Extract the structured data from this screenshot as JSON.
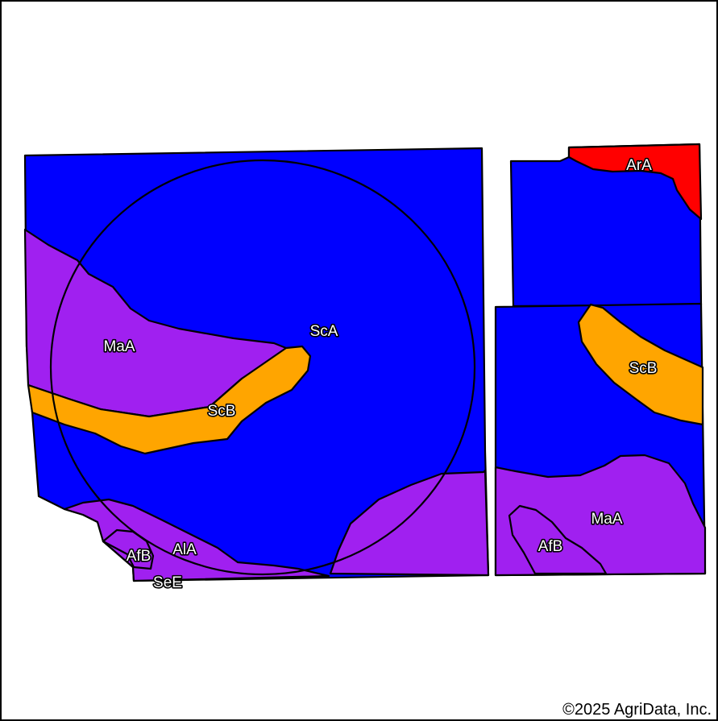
{
  "map": {
    "colors": {
      "blue_unit": "#0000ff",
      "purple_unit": "#a020f0",
      "orange_unit": "#ffa500",
      "red_unit": "#ff0000",
      "border": "#000000",
      "background": "#ffffff"
    },
    "labels": {
      "sca": "ScA",
      "maa_west": "MaA",
      "scb_west": "ScB",
      "afb_west": "AfB",
      "ala": "AlA",
      "see": "SeE",
      "ara": "ArA",
      "scb_east": "ScB",
      "maa_east": "MaA",
      "afb_east": "AfB"
    },
    "copyright": "©2025 AgriData, Inc."
  }
}
